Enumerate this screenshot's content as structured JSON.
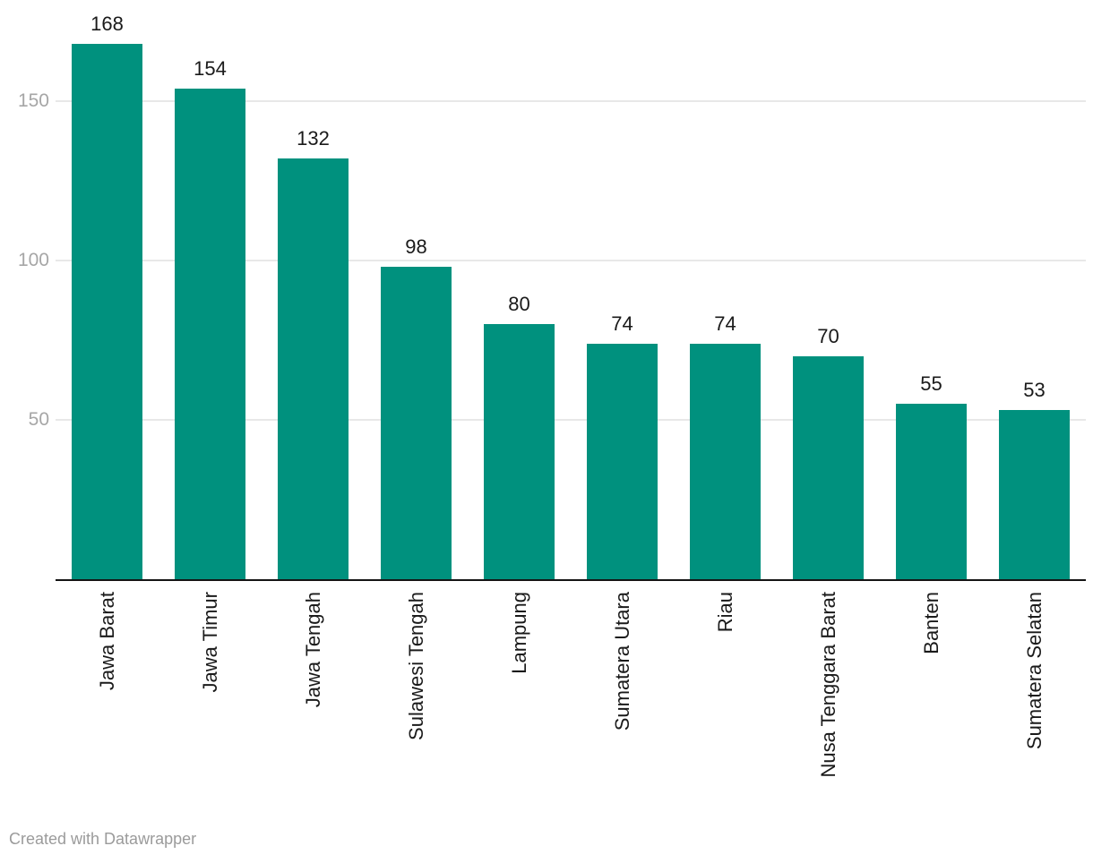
{
  "chart_data": {
    "type": "bar",
    "categories": [
      "Jawa Barat",
      "Jawa Timur",
      "Jawa Tengah",
      "Sulawesi Tengah",
      "Lampung",
      "Sumatera Utara",
      "Riau",
      "Nusa Tenggara Barat",
      "Banten",
      "Sumatera Selatan"
    ],
    "values": [
      168,
      154,
      132,
      98,
      80,
      74,
      74,
      70,
      55,
      53
    ],
    "title": "",
    "xlabel": "",
    "ylabel": "",
    "yticks": [
      50,
      100,
      150
    ],
    "ylim": [
      0,
      182
    ],
    "grid": true,
    "legend": false,
    "value_labels": true,
    "bar_orientation": "vertical"
  },
  "colors": {
    "bar": "#00917e",
    "grid": "#e8e8e8",
    "axis": "#141414",
    "value_label": "#1a1a1a",
    "category_label": "#1a1a1a",
    "tick_label": "#a6a6a6",
    "footer_text": "#9b9b9b"
  },
  "footer": {
    "attribution": "Created with Datawrapper"
  }
}
